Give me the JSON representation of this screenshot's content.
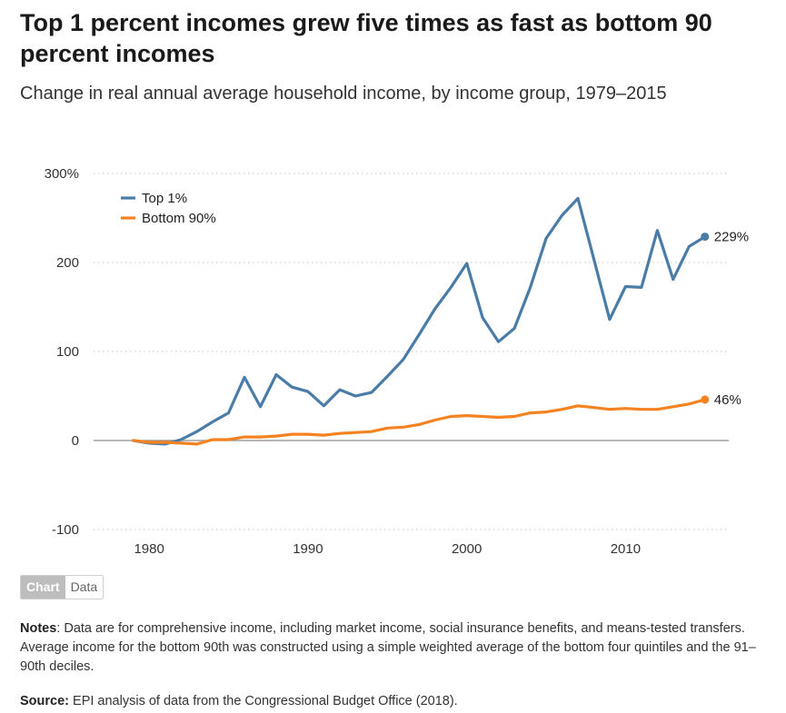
{
  "header": {
    "title": "Top 1 percent incomes grew five times as fast as bottom 90 percent incomes",
    "subtitle": "Change in real annual average household income, by income group, 1979–2015"
  },
  "toggle": {
    "chart_label": "Chart",
    "data_label": "Data"
  },
  "notes": {
    "label": "Notes",
    "text": ": Data are for comprehensive income, including market income, social insurance benefits, and means-tested transfers. Average income for the bottom 90th was constructed using a simple weighted average of the bottom four quintiles and the 91–90th deciles."
  },
  "source": {
    "label": "Source:",
    "text": " EPI analysis of data from the Congressional Budget Office (2018)."
  },
  "chart_data": {
    "type": "line",
    "x": [
      1979,
      1980,
      1981,
      1982,
      1983,
      1984,
      1985,
      1986,
      1987,
      1988,
      1989,
      1990,
      1991,
      1992,
      1993,
      1994,
      1995,
      1996,
      1997,
      1998,
      1999,
      2000,
      2001,
      2002,
      2003,
      2004,
      2005,
      2006,
      2007,
      2008,
      2009,
      2010,
      2011,
      2012,
      2013,
      2014,
      2015
    ],
    "series": [
      {
        "name": "Top 1%",
        "color": "#4a7ca8",
        "values": [
          0,
          -3,
          -4,
          1,
          10,
          21,
          31,
          71,
          38,
          74,
          60,
          55,
          39,
          57,
          50,
          54,
          72,
          91,
          119,
          148,
          172,
          199,
          138,
          111,
          126,
          172,
          227,
          253,
          272,
          204,
          136,
          173,
          172,
          236,
          181,
          218,
          229
        ],
        "end_label": "229%"
      },
      {
        "name": "Bottom 90%",
        "color": "#f58220",
        "values": [
          0,
          -2,
          -2,
          -3,
          -4,
          1,
          1,
          4,
          4,
          5,
          7,
          7,
          6,
          8,
          9,
          10,
          14,
          15,
          18,
          23,
          27,
          28,
          27,
          26,
          27,
          31,
          32,
          35,
          39,
          37,
          35,
          36,
          35,
          35,
          38,
          41,
          46
        ],
        "end_label": "46%"
      }
    ],
    "ylim": [
      -100,
      300
    ],
    "yticks": [
      -100,
      0,
      100,
      200,
      300
    ],
    "ytick_labels": [
      "-100",
      "0",
      "100",
      "200",
      "300%"
    ],
    "xticks": [
      1980,
      1990,
      2000,
      2010
    ],
    "xtick_labels": [
      "1980",
      "1990",
      "2000",
      "2010"
    ],
    "grid": true,
    "legend_position": "top-left"
  }
}
